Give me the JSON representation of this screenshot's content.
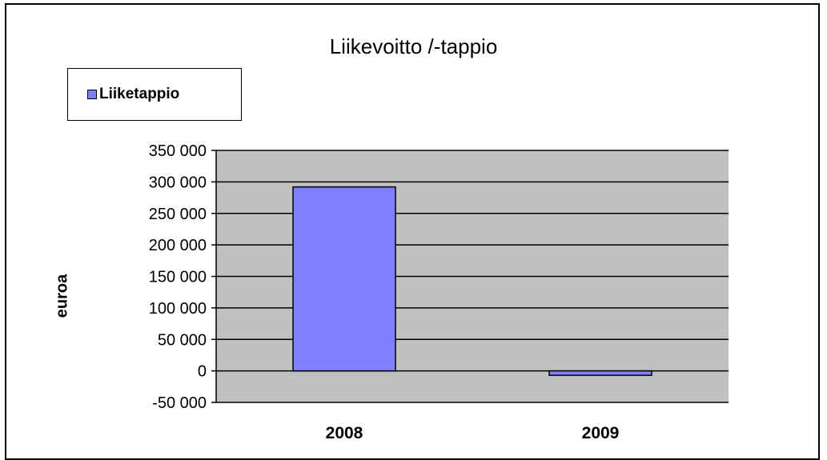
{
  "chart_data": {
    "type": "bar",
    "title": "Liikevoitto /-tappio",
    "xlabel": "",
    "ylabel": "euroa",
    "categories": [
      "2008",
      "2009"
    ],
    "series": [
      {
        "name": "Liiketappio",
        "values": [
          292000,
          -7000
        ]
      }
    ],
    "ylim": [
      -50000,
      350000
    ],
    "yticks": [
      350000,
      300000,
      250000,
      200000,
      150000,
      100000,
      50000,
      0,
      -50000
    ],
    "ytick_labels": [
      "350 000",
      "300 000",
      "250 000",
      "200 000",
      "150 000",
      "100 000",
      "50 000",
      "0",
      "-50 000"
    ],
    "grid": true,
    "legend_position": "top-left",
    "colors": {
      "bar": "#8080ff",
      "plot_area": "#c0c0c0",
      "gridline": "#000000"
    }
  }
}
